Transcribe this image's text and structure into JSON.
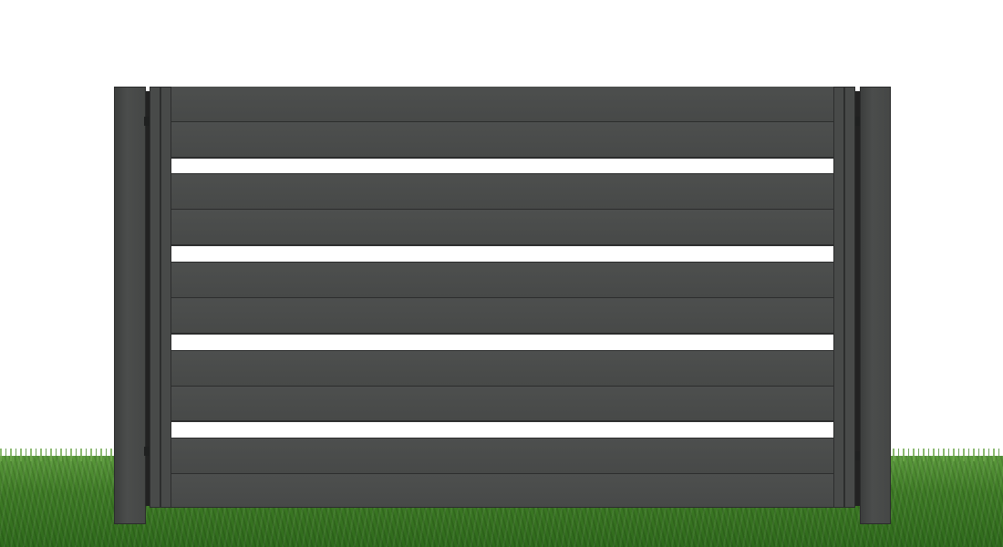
{
  "scene": {
    "subject": "fence-gate",
    "colors": {
      "background": "#ffffff",
      "metal": "#4a4c4b",
      "metal_shadow": "#2c2d2d",
      "grass": "#3f7c26"
    },
    "slat_rows": [
      "slat",
      "slat",
      "gap",
      "slat",
      "slat",
      "gap",
      "slat",
      "slat",
      "gap",
      "slat",
      "slat",
      "gap",
      "slat",
      "slat"
    ]
  }
}
